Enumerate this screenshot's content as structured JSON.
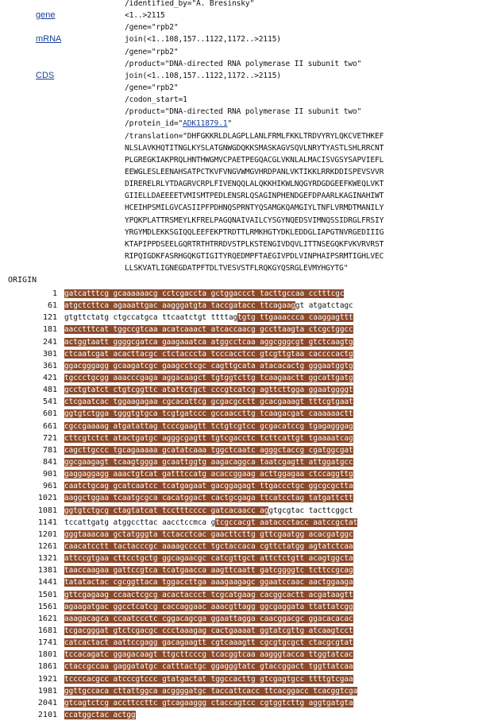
{
  "features": [
    {
      "key": "",
      "lines": [
        {
          "text": "/identified_by=\"A. Bresinsky\""
        }
      ]
    },
    {
      "key": "gene",
      "lines": [
        {
          "text": "<1..>2115"
        },
        {
          "text": "/gene=\"rpb2\""
        }
      ]
    },
    {
      "key": "mRNA",
      "lines": [
        {
          "text": "join(<1..108,157..1122,1172..>2115)"
        },
        {
          "text": "/gene=\"rpb2\""
        },
        {
          "text": "/product=\"DNA-directed RNA polymerase II subunit two\""
        }
      ]
    },
    {
      "key": "CDS",
      "lines": [
        {
          "text": "join(<1..108,157..1122,1172..>2115)"
        },
        {
          "text": "/gene=\"rpb2\""
        },
        {
          "text": "/codon_start=1"
        },
        {
          "text": "/product=\"DNA-directed RNA polymerase II subunit two\""
        },
        {
          "pre": "/protein_id=\"",
          "link": "ADK11879.1",
          "post": "\""
        },
        {
          "text": "/translation=\"DHFGKKRLDLAGPLLANLFRMLFKKLTRDVYRYLQKCVETHKEF"
        },
        {
          "text": "NLSLAVKHQTITNGLKYSLATGNWGDQKKSMASKAGVSQVLNRYTYASTLSHLRRCNT"
        },
        {
          "text": "PLGREGKIAKPRQLHNTHWGMVCPAETPEGQACGLVKNLALMACISVGSYSAPVIEFL"
        },
        {
          "text": "EEWGLESLEENAHSATPCTKVFVNGVWMGVHRDPANLVKTIKKLRRKDDISPEVSVVR"
        },
        {
          "text": "DIRERELRLYTDAGRVCRPLFIVENQQLALQKKHIKWLNQGYRDGDGEEFKWEQLVKT"
        },
        {
          "text": "GIIELLDAEEEETVMISMTPEDLENSRLQSAGINPHENDGEFDPAARLKAGINAHIWT"
        },
        {
          "text": "HCEIHPSMILGVCASIIPFPDHNQSPRNTYQSAMGKQAMGIYLTNFLVRMDTMANILY"
        },
        {
          "text": "YPQKPLATTRSMEYLKFRELPAGQNAIVAILCYSGYNQEDSVIMNQSSIDRGLFRSIY"
        },
        {
          "text": "YRGYMDLEKKSGIQQLEEFEKPTRDTTLRMKHGTYDKLEDDGLIAPGTNVRGEDIIIG"
        },
        {
          "text": "KTAPIPPDSEELGQRTRTHTRRDVSTPLKSTENGIVDQVLITTNSEGQKFVKVRVRST"
        },
        {
          "text": "RIPQIGDKFASRHGQKGTIGITYRQEDMPFTAEGIVPDLVINPHAIPSRMTIGHLVEC"
        },
        {
          "text": "LLSKVATLIGNEGDATPFTDLTVESVSTFLRQKGYQSRGLEVMYHGYTG\""
        }
      ]
    }
  ],
  "origin_label": "ORIGIN",
  "sequence": [
    {
      "num": "1",
      "segs": [
        {
          "t": "gatcatttcg gcaaaaaacg cctcgaccta gctggaccct tacttgccaa cctttcgc",
          "h": true
        }
      ]
    },
    {
      "num": "61",
      "segs": [
        {
          "t": "atgctcttca agaaattgac aagggatgta taccgatacc ttcagaag",
          "h": true
        },
        {
          "t": "gt atgatctagc",
          "h": false
        }
      ]
    },
    {
      "num": "121",
      "segs": [
        {
          "t": "gtgttctatg ctgccatgca ttcaatctgt ttttag",
          "h": false
        },
        {
          "t": "tgtg ttgaaaccca caaggagttt",
          "h": true
        }
      ]
    },
    {
      "num": "181",
      "segs": [
        {
          "t": "aacctttcat tggccgtcaa acatcaaact atcaccaacg gccttaagta ctcgctggcc",
          "h": true
        }
      ]
    },
    {
      "num": "241",
      "segs": [
        {
          "t": "actggtaatt ggggcgatca gaagaaatca atggcctcaa aggcgggcgt gtctcaagtg",
          "h": true
        }
      ]
    },
    {
      "num": "301",
      "segs": [
        {
          "t": "ctcaatcgat acacttacgc ctctaccctа tcccacctcc gtcgttgtaa caccccactg",
          "h": true
        }
      ]
    },
    {
      "num": "361",
      "segs": [
        {
          "t": "ggacgggagg gcaagatcgc gaagcctcgc cagttgcata atacacactg gggaatggtg",
          "h": true
        }
      ]
    },
    {
      "num": "421",
      "segs": [
        {
          "t": "tgccctgcgg aaacccgaga aggacaagct tgtggtcttg tcaagaactt ggcattgatg",
          "h": true
        }
      ]
    },
    {
      "num": "481",
      "segs": [
        {
          "t": "gcctgtatct ctgtcggttc atattctgct cccgtcatcg agttcttgga ggaatggggt",
          "h": true
        }
      ]
    },
    {
      "num": "541",
      "segs": [
        {
          "t": "ctcgaatcac tggaagagaa cgcacattcg gcgacgcctt gcacgaaagt tttcgtgaat",
          "h": true
        }
      ]
    },
    {
      "num": "601",
      "segs": [
        {
          "t": "ggtgtctgga tgggtgtgca tcgtgatccc gccaaccttg tcaagacgat caaaaaactt",
          "h": true
        }
      ]
    },
    {
      "num": "661",
      "segs": [
        {
          "t": "cgccgaaaag atgatattag tcccgaagtt tctgtcgtcc gcgacatccg tgagagggag",
          "h": true
        }
      ]
    },
    {
      "num": "721",
      "segs": [
        {
          "t": "cttcgtctct atactgatgc agggcgagtt tgtcgacctc tcttcattgt tgaaaatcag",
          "h": true
        }
      ]
    },
    {
      "num": "781",
      "segs": [
        {
          "t": "cagcttgccc tgcagaaaaa gcatatcaaa tggctcaatc agggctaccg cgatggcgat",
          "h": true
        }
      ]
    },
    {
      "num": "841",
      "segs": [
        {
          "t": "ggcgaagagt tcaagtggga gcaattggtg aagacaggca taatcgagtt attggatgcc",
          "h": true
        }
      ]
    },
    {
      "num": "901",
      "segs": [
        {
          "t": "gaggaggagg aaactgtcat gatttccatg acaccggaag acttggagaa ctccaggttg",
          "h": true
        }
      ]
    },
    {
      "num": "961",
      "segs": [
        {
          "t": "caatctgcag gcatcaatcc tcatgagaat gacggagagt ttgaccctgc ggcgcgctta",
          "h": true
        }
      ]
    },
    {
      "num": "1021",
      "segs": [
        {
          "t": "aaggctggaa tcaatgcgca cacatggact cactgcgaga ttcatcctag tatgattctt",
          "h": true
        }
      ]
    },
    {
      "num": "1081",
      "segs": [
        {
          "t": "ggtgtctgcg ctagtatcat tcctttcccc gatcacaacc ag",
          "h": true
        },
        {
          "t": "gtgcgtac tacttcggct",
          "h": false
        }
      ]
    },
    {
      "num": "1141",
      "segs": [
        {
          "t": "tccattgatg atggccttac aacctccmca g",
          "h": false
        },
        {
          "t": "tcgccacgt aataccctacc aatccgctat",
          "h": true
        }
      ]
    },
    {
      "num": "1201",
      "segs": [
        {
          "t": "gggtaaacaa gctatgggta tctacctcac gaacttcttg gttcgaatgg acacgatggc",
          "h": true
        }
      ]
    },
    {
      "num": "1261",
      "segs": [
        {
          "t": "caacatcctt tactacccgc aaaagcccct tgctaccaca cgttctatgg agtatctcaa",
          "h": true
        }
      ]
    },
    {
      "num": "1321",
      "segs": [
        {
          "t": "attccgtgaa cttcctgctg ggcagaacgc catcgttgct attctctgtt acagtggcta",
          "h": true
        }
      ]
    },
    {
      "num": "1381",
      "segs": [
        {
          "t": "taaccaagaa gattccgtca tcatgaacca aagttcaatt gatcggggtc tcttccgcag",
          "h": true
        }
      ]
    },
    {
      "num": "1441",
      "segs": [
        {
          "t": "tatatactac cgcggttaca tggaccttga aaagaagagc ggaatccaac aactggaaga",
          "h": true
        }
      ]
    },
    {
      "num": "1501",
      "segs": [
        {
          "t": "gttcgagaag ccaactcgcg acactaccct tcgcatgaag cacggcactt acgataagtt",
          "h": true
        }
      ]
    },
    {
      "num": "1561",
      "segs": [
        {
          "t": "agaagatgac ggcctcatcg caccaggaac aaacgttagg ggcgaggata ttattatcgg",
          "h": true
        }
      ]
    },
    {
      "num": "1621",
      "segs": [
        {
          "t": "aaagacagca ccaatccctc cggacagcga ggaattagga caacggacgc ggacacacac",
          "h": true
        }
      ]
    },
    {
      "num": "1681",
      "segs": [
        {
          "t": "tcgacgggat gtctcgacgc ccctaaagag cactgaaaat ggtatcgttg atcaagtcct",
          "h": true
        }
      ]
    },
    {
      "num": "1741",
      "segs": [
        {
          "t": "catcactact aattccgagg gacagaagtt cgtcaaagtt cgcgtgcgct ctacgcgtat",
          "h": true
        }
      ]
    },
    {
      "num": "1801",
      "segs": [
        {
          "t": "tccacagatc ggagacaagt ttgcttcccg tcacggtcaa aagggtacca ttggtatcac",
          "h": true
        }
      ]
    },
    {
      "num": "1861",
      "segs": [
        {
          "t": "ctaccgccaa gaggatatgc catttactgc ggagggtatc gtaccggact tggttatcaa",
          "h": true
        }
      ]
    },
    {
      "num": "1921",
      "segs": [
        {
          "t": "tccccacgcc atcccgtccc gtatgactat tggccacttg gtcgagtgcc ttttgtcgaa",
          "h": true
        }
      ]
    },
    {
      "num": "1981",
      "segs": [
        {
          "t": "ggttgccaca cttattggca acggggatgc taccattcacc ttcacggacc tcacggtcga",
          "h": true
        }
      ]
    },
    {
      "num": "2041",
      "segs": [
        {
          "t": "gtcagtctcg accttccttc gtcagaaggg ctaccagtcc cgtggtcttg aggtgatgta",
          "h": true
        }
      ]
    },
    {
      "num": "2101",
      "segs": [
        {
          "t": "ccatggctac actgg",
          "h": true
        }
      ]
    }
  ],
  "colors": {
    "highlight": "#8b4a2b",
    "link": "#1a3f99"
  }
}
